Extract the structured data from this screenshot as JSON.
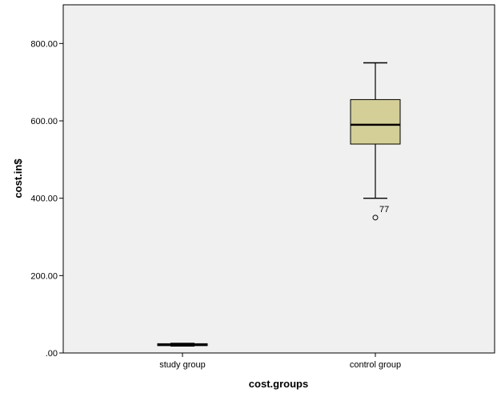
{
  "chart_data": {
    "type": "box",
    "xlabel": "cost.groups",
    "ylabel": "cost.in$",
    "ylim": [
      0,
      900
    ],
    "yticks": [
      {
        "value": 0,
        "label": ".00"
      },
      {
        "value": 200,
        "label": "200.00"
      },
      {
        "value": 400,
        "label": "400.00"
      },
      {
        "value": 600,
        "label": "600.00"
      },
      {
        "value": 800,
        "label": "800.00"
      }
    ],
    "categories": [
      "study group",
      "control group"
    ],
    "boxes": [
      {
        "category": "study group",
        "min": 18,
        "q1": 19,
        "median": 21,
        "q3": 24,
        "max": 25,
        "outliers": []
      },
      {
        "category": "control group",
        "min": 400,
        "q1": 540,
        "median": 590,
        "q3": 655,
        "max": 750,
        "outliers": [
          {
            "value": 350,
            "label": "77"
          }
        ]
      }
    ],
    "colors": {
      "plot_background": "#f0f0f0",
      "box_fill": "#d3cf96",
      "stroke": "#000000"
    },
    "grid": false
  }
}
